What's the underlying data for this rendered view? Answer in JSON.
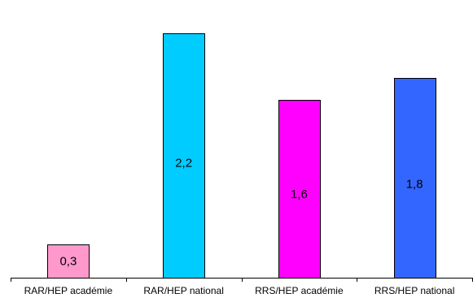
{
  "chart_data": {
    "type": "bar",
    "categories": [
      "RAR/HEP académie",
      "RAR/HEP national",
      "RRS/HEP académie",
      "RRS/HEP national"
    ],
    "values": [
      0.3,
      2.2,
      1.6,
      1.8
    ],
    "value_labels": [
      "0,3",
      "2,2",
      "1,6",
      "1,8"
    ],
    "bar_colors": [
      "#ff99cc",
      "#00ccff",
      "#ff00ff",
      "#3366ff"
    ],
    "ylim": [
      0,
      2.2
    ],
    "grid": false,
    "legend": "none"
  }
}
